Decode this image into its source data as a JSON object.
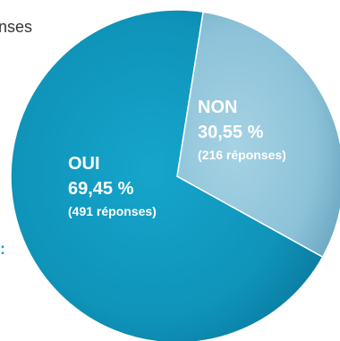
{
  "edge_text": {
    "top_left": "nses",
    "bottom_left": ":"
  },
  "chart_data": {
    "type": "pie",
    "slices": [
      {
        "label": "OUI",
        "percent_text": "69,45 %",
        "count_text": "(491 réponses)",
        "percent": 69.45,
        "count": 491,
        "color": "#1193b8"
      },
      {
        "label": "NON",
        "percent_text": "30,55 %",
        "count_text": "(216 réponses)",
        "percent": 30.55,
        "count": 216,
        "color": "#8fc4da"
      }
    ],
    "start_angle_deg": -81,
    "legend": "none"
  },
  "colors": {
    "edge_text": "#333333",
    "edge_colon": "#1aa3c8",
    "non_label": "#d6eef7"
  }
}
